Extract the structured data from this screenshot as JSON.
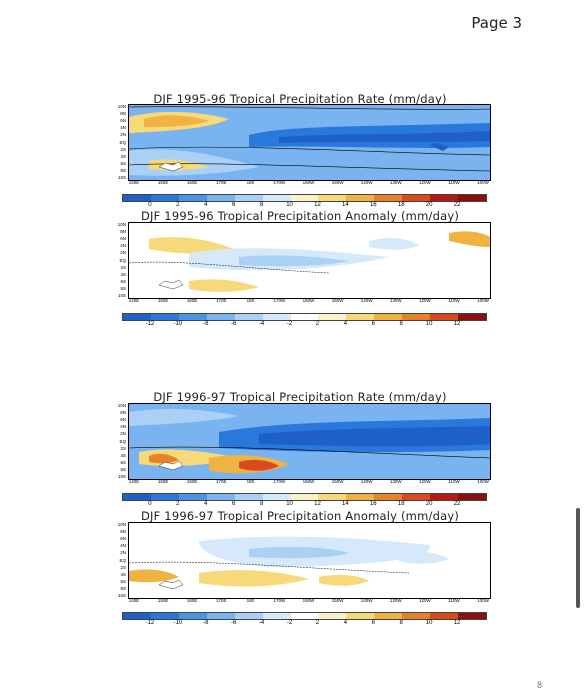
{
  "header": {
    "page_label": "Page 3"
  },
  "footer": {
    "page_number": "8"
  },
  "lat_ticks": [
    "10N",
    "8N",
    "6N",
    "4N",
    "2N",
    "EQ",
    "2S",
    "4S",
    "6S",
    "8S",
    "10S"
  ],
  "lon_ticks": [
    "140E",
    "150E",
    "160E",
    "170E",
    "180",
    "170W",
    "160W",
    "150W",
    "140W",
    "130W",
    "120W",
    "110W",
    "100W"
  ],
  "rate_colorbar": {
    "labels": [
      "0",
      "2",
      "4",
      "6",
      "8",
      "10",
      "12",
      "14",
      "16",
      "18",
      "20",
      "22"
    ],
    "colors": [
      "#1e5fc8",
      "#2a78dc",
      "#4a94e8",
      "#79b4f0",
      "#aad0f6",
      "#d6e9fa",
      "#fbf1c8",
      "#f7d97a",
      "#f0b240",
      "#e8822a",
      "#d94a1c",
      "#b31a14",
      "#8a0f0f"
    ]
  },
  "anomaly_colorbar": {
    "labels": [
      "-12",
      "-10",
      "-8",
      "-6",
      "-4",
      "-2",
      "2",
      "4",
      "6",
      "8",
      "10",
      "12"
    ],
    "colors": [
      "#1e5fc8",
      "#2a78dc",
      "#4a94e8",
      "#79b4f0",
      "#aad0f6",
      "#d6e9fa",
      "#ffffff",
      "#fbf1c8",
      "#f7d97a",
      "#f0b240",
      "#e8822a",
      "#d94a1c",
      "#8a0f0f"
    ]
  },
  "maps": [
    {
      "title": "DJF 1995-96 Tropical Precipitation Rate (mm/day)"
    },
    {
      "title": "DJF 1995-96 Tropical Precipitation Anomaly (mm/day)"
    },
    {
      "title": "DJF 1996-97 Tropical Precipitation Rate (mm/day)"
    },
    {
      "title": "DJF 1996-97 Tropical Precipitation Anomaly (mm/day)"
    }
  ]
}
